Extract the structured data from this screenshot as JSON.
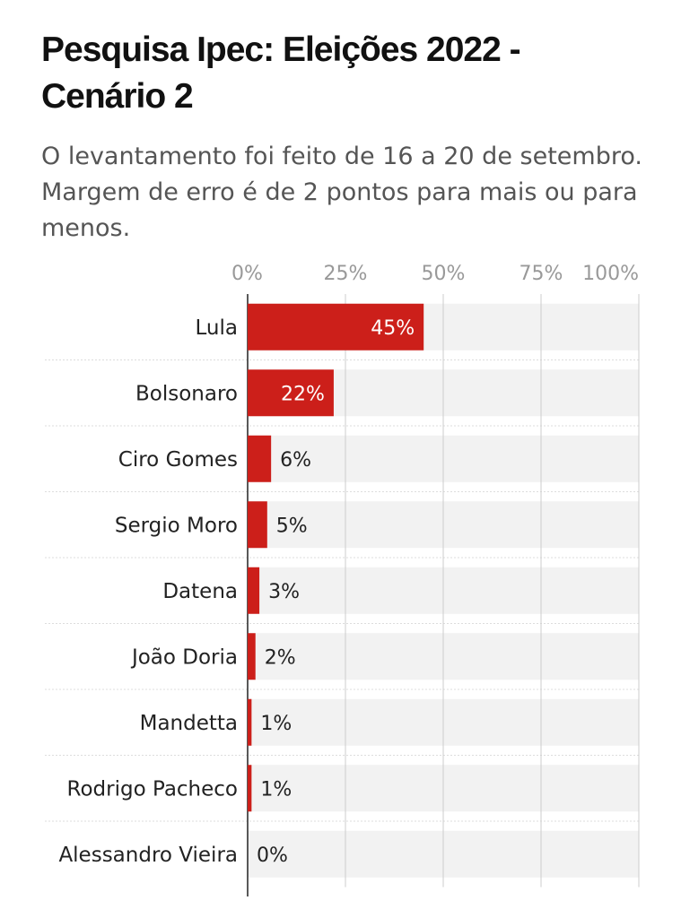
{
  "title": "Pesquisa Ipec: Eleições 2022 - Cenário 2",
  "subtitle": "O levantamento foi feito de 16 a 20 de setembro. Margem de erro é de 2 pontos para mais ou para menos.",
  "colors": {
    "bar": "#cc1f1a",
    "track": "#f2f2f2",
    "grid": "#cccccc"
  },
  "chart_data": {
    "type": "bar",
    "orientation": "horizontal",
    "categories": [
      "Lula",
      "Bolsonaro",
      "Ciro Gomes",
      "Sergio Moro",
      "Datena",
      "João Doria",
      "Mandetta",
      "Rodrigo Pacheco",
      "Alessandro Vieira"
    ],
    "values": [
      45,
      22,
      6,
      5,
      3,
      2,
      1,
      1,
      0
    ],
    "value_labels": [
      "45%",
      "22%",
      "6%",
      "5%",
      "3%",
      "2%",
      "1%",
      "1%",
      "0%"
    ],
    "xlim": [
      0,
      100
    ],
    "ticks": [
      0,
      25,
      50,
      75,
      100
    ],
    "tick_labels": [
      "0%",
      "25%",
      "50%",
      "75%",
      "100%"
    ],
    "grid": true,
    "legend": "none"
  }
}
